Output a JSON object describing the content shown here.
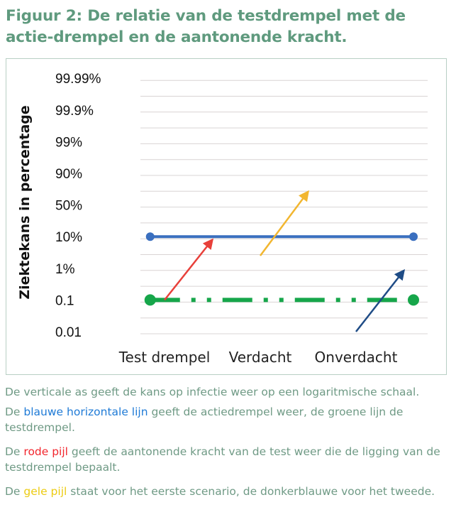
{
  "title": "Figuur 2: De relatie van de testdrempel met de actie-drempel en de aantonende kracht.",
  "chart_data": {
    "type": "line",
    "title": "",
    "ylabel": "Ziektekans in percentage",
    "xlabel": "",
    "y_scale": "logarithmic (probability)",
    "y_ticks": [
      0.01,
      0.1,
      1,
      10,
      50,
      90,
      99,
      99.9,
      99.99
    ],
    "y_tick_labels": [
      "0.01",
      "0.1",
      "1%",
      "10%",
      "50%",
      "90%",
      "99%",
      "99.9%",
      "99.99%"
    ],
    "categories": [
      "Test drempel",
      "Verdacht",
      "Onverdacht"
    ],
    "grid": true,
    "lines": [
      {
        "id": "actiedrempel",
        "color": "#3a6fbf",
        "style": "solid",
        "y": 10,
        "x": [
          -0.15,
          2.6
        ],
        "markers": true
      },
      {
        "id": "testdrempel",
        "color": "#16a64a",
        "style": "dash-dot-dot",
        "y": 0.1,
        "x": [
          -0.15,
          2.6
        ],
        "markers": true
      }
    ],
    "arrows": [
      {
        "id": "rode-pijl",
        "color": "#e8403a",
        "from": {
          "x": 0,
          "y": 0.1
        },
        "to": {
          "x": 0.5,
          "y": 8
        }
      },
      {
        "id": "gele-pijl",
        "color": "#f2b630",
        "from": {
          "x": 1,
          "y": 2.5
        },
        "to": {
          "x": 1.5,
          "y": 64
        }
      },
      {
        "id": "donkerblauwe-pijl",
        "color": "#1f4c86",
        "from": {
          "x": 2,
          "y": 0.01
        },
        "to": {
          "x": 2.5,
          "y": 0.85
        }
      }
    ]
  },
  "captions": {
    "c1": "De verticale as geeft de kans op infectie weer op een logaritmische schaal.",
    "c2_pre": "De ",
    "c2_hl": "blauwe horizontale lijn",
    "c2_post": " geeft de actiedrempel weer, de groene lijn de testdrempel.",
    "c3_pre": "De ",
    "c3_hl": "rode pijl",
    "c3_post": " geeft de aantonende kracht van de test weer die de ligging van de testdrempel bepaalt.",
    "c4_pre": "De ",
    "c4_hl": "gele pijl",
    "c4_post": " staat voor het eerste scenario, de donkerblauwe voor het tweede."
  }
}
